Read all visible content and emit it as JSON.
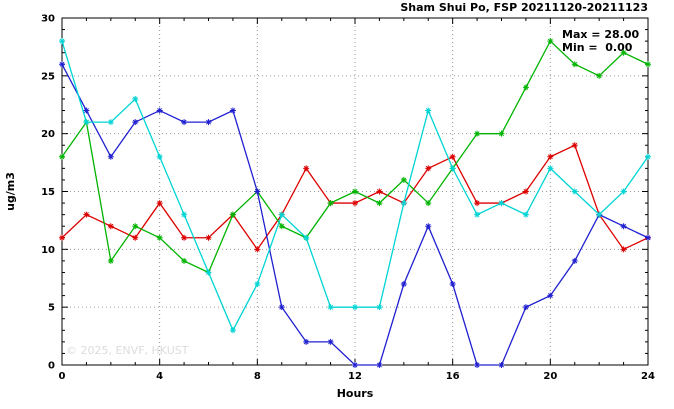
{
  "chart_data": {
    "type": "line",
    "title": "Sham Shui Po, FSP 20211120-20211123",
    "xlabel": "Hours",
    "ylabel": "ug/m3",
    "xlim": [
      0,
      24
    ],
    "ylim": [
      0,
      30
    ],
    "xticks": [
      0,
      4,
      8,
      12,
      16,
      20,
      24
    ],
    "yticks": [
      0,
      5,
      10,
      15,
      20,
      25,
      30
    ],
    "grid": true,
    "legend_position": "top-right-inside",
    "x": [
      0,
      1,
      2,
      3,
      4,
      5,
      6,
      7,
      8,
      9,
      10,
      11,
      12,
      13,
      14,
      15,
      16,
      17,
      18,
      19,
      20,
      21,
      22,
      23,
      24
    ],
    "series": [
      {
        "name": "red",
        "color": "#dd0000",
        "values": [
          11,
          13,
          12,
          11,
          14,
          11,
          11,
          13,
          10,
          13,
          17,
          14,
          14,
          15,
          14,
          17,
          18,
          14,
          14,
          15,
          18,
          19,
          13,
          10,
          11
        ]
      },
      {
        "name": "green",
        "color": "#00b400",
        "values": [
          18,
          21,
          9,
          12,
          11,
          9,
          8,
          13,
          15,
          12,
          11,
          14,
          15,
          14,
          16,
          14,
          17,
          20,
          20,
          24,
          28,
          26,
          25,
          27,
          26
        ]
      },
      {
        "name": "blue",
        "color": "#2020d0",
        "values": [
          26,
          22,
          18,
          21,
          22,
          21,
          21,
          22,
          15,
          5,
          2,
          2,
          0,
          0,
          7,
          12,
          7,
          0,
          0,
          5,
          6,
          9,
          13,
          12,
          11
        ]
      },
      {
        "name": "cyan",
        "color": "#00d4d4",
        "values": [
          28,
          21,
          21,
          23,
          18,
          13,
          8,
          3,
          7,
          13,
          11,
          5,
          5,
          5,
          14,
          22,
          17,
          13,
          14,
          13,
          17,
          15,
          13,
          15,
          18
        ]
      }
    ],
    "annotations": {
      "max_label": "Max = 28.00",
      "min_label": "Min =  0.00"
    },
    "watermark": "© 2025, ENVF, HKUST"
  }
}
